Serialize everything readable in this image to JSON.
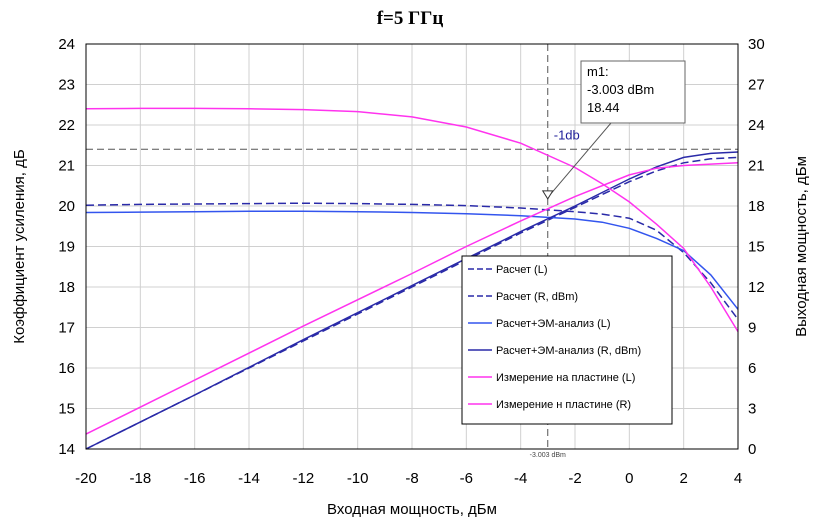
{
  "chart_data": {
    "type": "line",
    "title": "f=5 ГГц",
    "xlabel": "Входная мощность, дБм",
    "ylabel_left": "Коэффициент усиления, дБ",
    "ylabel_right": "Выходная мощность, дБм",
    "xlim": [
      -20,
      4
    ],
    "ylim_left": [
      14,
      24
    ],
    "ylim_right": [
      0,
      30
    ],
    "x_ticks": [
      -20,
      -18,
      -16,
      -14,
      -12,
      -10,
      -8,
      -6,
      -4,
      -2,
      0,
      2,
      4
    ],
    "y_left_ticks": [
      14,
      15,
      16,
      17,
      18,
      19,
      20,
      21,
      22,
      23,
      24
    ],
    "y_right_ticks": [
      0,
      3,
      6,
      9,
      12,
      15,
      18,
      21,
      24,
      27,
      30
    ],
    "grid": true,
    "legend_position": "lower-right",
    "colors": {
      "dark_blue": "#2a2aa8",
      "blue": "#3355ee",
      "magenta": "#ff33ee"
    },
    "series": [
      {
        "name": "Расчет (L)",
        "axis": "left",
        "style": "dashed",
        "color": "#2a2aa8",
        "x": [
          -20,
          -18,
          -16,
          -14,
          -12,
          -10,
          -8,
          -6,
          -4,
          -2,
          -1,
          0,
          1,
          2,
          3,
          4
        ],
        "y": [
          20.02,
          20.04,
          20.05,
          20.06,
          20.07,
          20.06,
          20.04,
          20.01,
          19.95,
          19.86,
          19.8,
          19.7,
          19.4,
          18.85,
          18.1,
          17.2
        ]
      },
      {
        "name": "Расчет (R, dBm)",
        "axis": "right",
        "style": "dashed",
        "color": "#2a2aa8",
        "x": [
          -20,
          -16,
          -12,
          -8,
          -6,
          -4,
          -2,
          0,
          1,
          2,
          3,
          4
        ],
        "y": [
          0.0,
          4.0,
          8.0,
          12.0,
          14.0,
          16.0,
          17.9,
          19.8,
          20.6,
          21.2,
          21.5,
          21.6
        ]
      },
      {
        "name": "Расчет+ЭМ-анализ (L)",
        "axis": "left",
        "style": "solid",
        "color": "#3355ee",
        "x": [
          -20,
          -18,
          -16,
          -14,
          -12,
          -10,
          -8,
          -6,
          -4,
          -2,
          -1,
          0,
          1,
          2,
          3,
          4
        ],
        "y": [
          19.84,
          19.85,
          19.86,
          19.87,
          19.87,
          19.86,
          19.84,
          19.81,
          19.76,
          19.68,
          19.6,
          19.45,
          19.2,
          18.9,
          18.3,
          17.45
        ]
      },
      {
        "name": "Расчет+ЭМ-анализ (R, dBm)",
        "axis": "right",
        "style": "solid",
        "color": "#2a2aa8",
        "x": [
          -20,
          -16,
          -12,
          -8,
          -6,
          -4,
          -2,
          0,
          1,
          2,
          3,
          4
        ],
        "y": [
          0.0,
          4.0,
          8.1,
          12.1,
          14.1,
          16.1,
          18.0,
          20.0,
          20.9,
          21.6,
          21.9,
          22.0
        ]
      },
      {
        "name": "Измерение на пластине (L)",
        "axis": "left",
        "style": "solid",
        "color": "#ff33ee",
        "x": [
          -20,
          -18,
          -16,
          -14,
          -12,
          -10,
          -8,
          -6,
          -4,
          -2,
          -1,
          0,
          1,
          2,
          3,
          4
        ],
        "y": [
          22.4,
          22.41,
          22.41,
          22.4,
          22.38,
          22.33,
          22.2,
          21.95,
          21.55,
          20.95,
          20.55,
          20.1,
          19.55,
          18.95,
          18.0,
          16.9
        ]
      },
      {
        "name": "Измерение н пластине (R)",
        "axis": "right",
        "style": "solid",
        "color": "#ff33ee",
        "x": [
          -20,
          -16,
          -12,
          -8,
          -6,
          -4,
          -2,
          0,
          1,
          2,
          3,
          4
        ],
        "y": [
          1.1,
          5.1,
          9.1,
          13.0,
          15.0,
          16.9,
          18.7,
          20.3,
          20.8,
          21.0,
          21.1,
          21.2
        ]
      }
    ],
    "reference_lines": [
      {
        "label": "-1db",
        "orientation": "horizontal",
        "axis": "left",
        "value": 21.4
      },
      {
        "label": "-3.003 dBm",
        "orientation": "vertical",
        "value": -3.003
      }
    ],
    "marker": {
      "name": "m1:",
      "x_text": "-3.003 dBm",
      "y_text": "18.44",
      "x": -3.003,
      "y_left": 20.15
    }
  }
}
